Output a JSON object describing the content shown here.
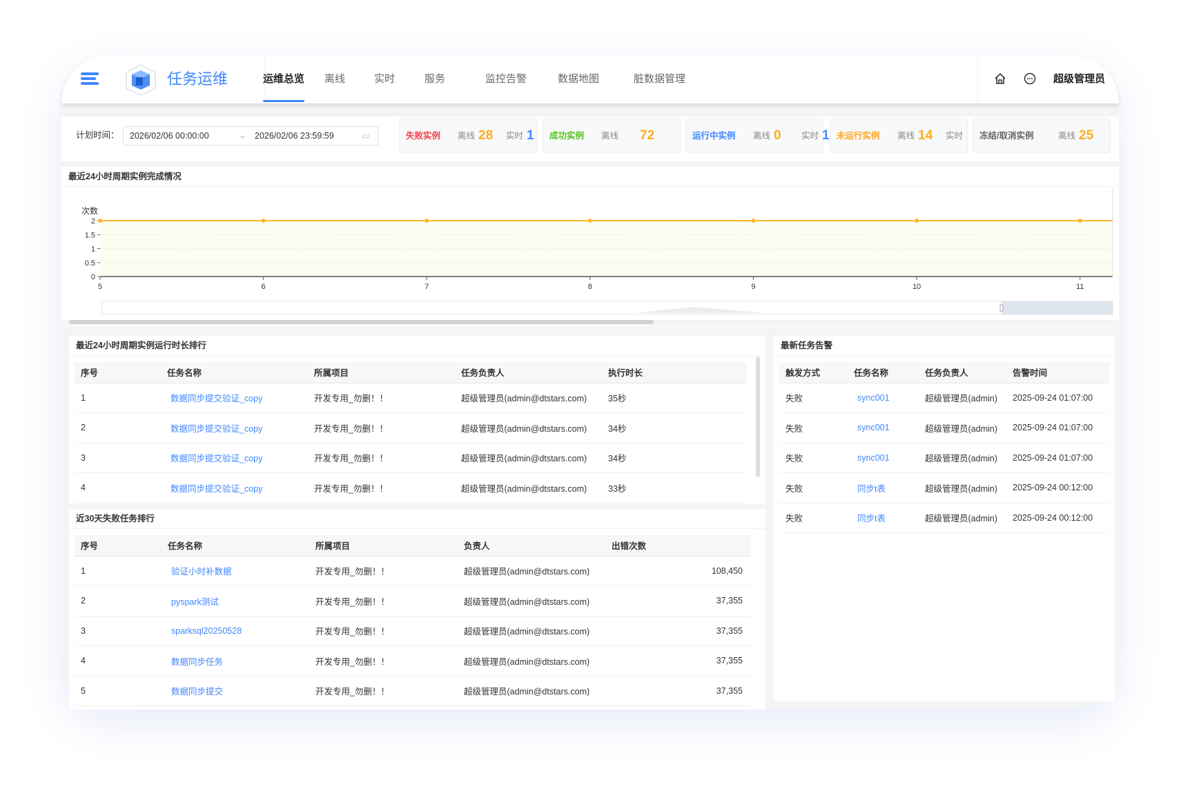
{
  "app": {
    "title": "任务运维",
    "user": "超级管理员"
  },
  "nav": [
    {
      "label": "运维总览",
      "active": true
    },
    {
      "label": "离线"
    },
    {
      "label": "实时"
    },
    {
      "label": "服务"
    },
    {
      "label": "监控告警"
    },
    {
      "label": "数据地图"
    },
    {
      "label": "脏数据管理"
    }
  ],
  "filter": {
    "label": "计划时间：",
    "start": "2026/02/06 00:00:00",
    "end": "2026/02/06 23:59:59"
  },
  "stats": [
    {
      "title": "失败实例",
      "color": "#f5424b",
      "offline_label": "离线",
      "offline": "28",
      "realtime_label": "实时",
      "realtime": "1"
    },
    {
      "title": "成功实例",
      "color": "#52c41a",
      "offline_label": "离线",
      "offline": "72"
    },
    {
      "title": "运行中实例",
      "color": "#3f87ff",
      "offline_label": "离线",
      "offline": "0",
      "realtime_label": "实时",
      "realtime": "1"
    },
    {
      "title": "未运行实例",
      "color": "#ffa81c",
      "offline_label": "离线",
      "offline": "14",
      "realtime_label": "实时"
    },
    {
      "title": "冻结/取消实例",
      "color": "#666666",
      "offline_label": "离线",
      "offline": "25"
    }
  ],
  "chart_panel": {
    "title": "最近24小时周期实例完成情况"
  },
  "chart_data": {
    "type": "area",
    "ylabel": "次数",
    "x": [
      5,
      6,
      7,
      8,
      9,
      10,
      11
    ],
    "values": [
      2,
      2,
      2,
      2,
      2,
      2,
      2
    ],
    "xlim": [
      5,
      11.2
    ],
    "ylim": [
      0,
      2
    ],
    "yticks": [
      "0",
      "0.5",
      "1",
      "1.5",
      "2"
    ],
    "xticks": [
      "5",
      "6",
      "7",
      "8",
      "9",
      "10",
      "11"
    ],
    "color": "#ffb62e",
    "grid": true,
    "datazoom": true
  },
  "runtime": {
    "title": "最近24小时周期实例运行时长排行",
    "columns": [
      "序号",
      "任务名称",
      "所属项目",
      "任务负责人",
      "执行时长"
    ],
    "rows": [
      [
        "1",
        "数据同步提交验证_copy",
        "开发专用_勿删！！",
        "超级管理员(admin@dtstars.com)",
        "35秒"
      ],
      [
        "2",
        "数据同步提交验证_copy",
        "开发专用_勿删！！",
        "超级管理员(admin@dtstars.com)",
        "34秒"
      ],
      [
        "3",
        "数据同步提交验证_copy",
        "开发专用_勿删！！",
        "超级管理员(admin@dtstars.com)",
        "34秒"
      ],
      [
        "4",
        "数据同步提交验证_copy",
        "开发专用_勿删！！",
        "超级管理员(admin@dtstars.com)",
        "33秒"
      ]
    ]
  },
  "failed": {
    "title": "近30天失败任务排行",
    "columns": [
      "序号",
      "任务名称",
      "所属项目",
      "负责人",
      "出错次数"
    ],
    "rows": [
      [
        "1",
        "验证小时补数据",
        "开发专用_勿删！！",
        "超级管理员(admin@dtstars.com)",
        "108,450"
      ],
      [
        "2",
        "pyspark测试",
        "开发专用_勿删！！",
        "超级管理员(admin@dtstars.com)",
        "37,355"
      ],
      [
        "3",
        "sparksql20250528",
        "开发专用_勿删！！",
        "超级管理员(admin@dtstars.com)",
        "37,355"
      ],
      [
        "4",
        "数据同步任务",
        "开发专用_勿删！！",
        "超级管理员(admin@dtstars.com)",
        "37,355"
      ],
      [
        "5",
        "数据同步提交",
        "开发专用_勿删！！",
        "超级管理员(admin@dtstars.com)",
        "37,355"
      ]
    ]
  },
  "alerts": {
    "title": "最新任务告警",
    "columns": [
      "触发方式",
      "任务名称",
      "任务负责人",
      "告警时间"
    ],
    "rows": [
      [
        "失败",
        "sync001",
        "超级管理员(admin)",
        "2025-09-24 01:07:00"
      ],
      [
        "失败",
        "sync001",
        "超级管理员(admin)",
        "2025-09-24 01:07:00"
      ],
      [
        "失败",
        "sync001",
        "超级管理员(admin)",
        "2025-09-24 01:07:00"
      ],
      [
        "失败",
        "同步t表",
        "超级管理员(admin)",
        "2025-09-24 00:12:00"
      ],
      [
        "失败",
        "同步t表",
        "超级管理员(admin)",
        "2025-09-24 00:12:00"
      ]
    ]
  }
}
